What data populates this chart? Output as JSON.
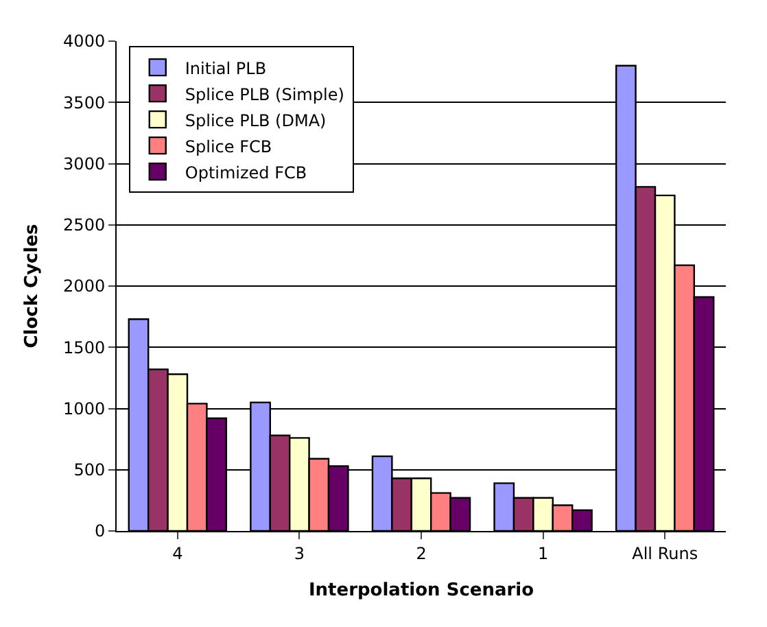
{
  "chart_data": {
    "type": "bar",
    "xlabel": "Interpolation Scenario",
    "ylabel": "Clock Cycles",
    "categories": [
      "4",
      "3",
      "2",
      "1",
      "All Runs"
    ],
    "series": [
      {
        "name": "Initial PLB",
        "color": "#9999ff",
        "values": [
          1730,
          1050,
          610,
          390,
          3800
        ]
      },
      {
        "name": "Splice PLB (Simple)",
        "color": "#993366",
        "values": [
          1320,
          780,
          430,
          270,
          2810
        ]
      },
      {
        "name": "Splice PLB (DMA)",
        "color": "#ffffcc",
        "values": [
          1280,
          760,
          430,
          270,
          2740
        ]
      },
      {
        "name": "Splice FCB",
        "color": "#ff8080",
        "values": [
          1040,
          590,
          310,
          210,
          2170
        ]
      },
      {
        "name": "Optimized FCB",
        "color": "#660066",
        "values": [
          920,
          530,
          270,
          170,
          1910
        ]
      }
    ],
    "ylim": [
      0,
      4000
    ],
    "yticks": [
      0,
      500,
      1000,
      1500,
      2000,
      2500,
      3000,
      3500,
      4000
    ],
    "grid": "y",
    "legend": "top left"
  }
}
